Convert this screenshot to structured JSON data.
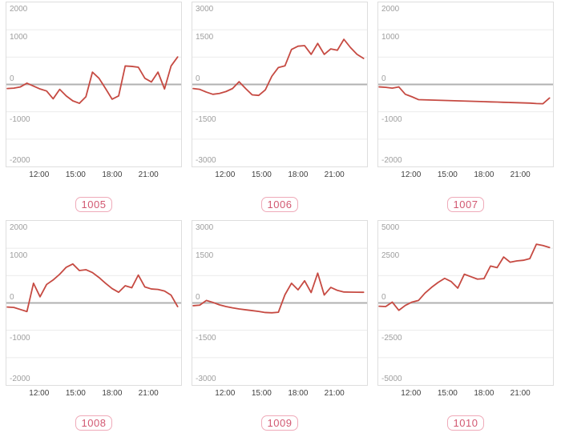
{
  "style": {
    "line_color": "#c64a42",
    "grid_color": "#ebebeb",
    "zero_line_color": "#b1b1b1",
    "plot_border_color": "#dedede",
    "y_label_color": "#9e9e9e",
    "x_label_color": "#3f3f3f",
    "badge_border_color": "#efaab9",
    "badge_text_color": "#d25871"
  },
  "chart_data": [
    {
      "type": "line",
      "title": "1005",
      "ylim": [
        -2000,
        2000
      ],
      "y_ticks": [
        "2000",
        "1000",
        "0",
        "-1000",
        "-2000"
      ],
      "x_labels": [
        "12:00",
        "15:00",
        "18:00",
        "21:00"
      ],
      "x_tick_pct": [
        19,
        39.7,
        60.4,
        81
      ],
      "x_start": "10:00",
      "x_end": "23:00",
      "x_interval_min": 30,
      "values": [
        -100,
        -90,
        -60,
        30,
        -40,
        -110,
        -160,
        -350,
        -120,
        -280,
        -400,
        -460,
        -300,
        300,
        150,
        -100,
        -360,
        -280,
        450,
        440,
        420,
        150,
        60,
        300,
        -110,
        450,
        670
      ],
      "grid": true,
      "legend": "none"
    },
    {
      "type": "line",
      "title": "1006",
      "ylim": [
        -3000,
        3000
      ],
      "y_ticks": [
        "3000",
        "1500",
        "0",
        "-1500",
        "-3000"
      ],
      "x_labels": [
        "12:00",
        "15:00",
        "18:00",
        "21:00"
      ],
      "x_tick_pct": [
        19,
        39.7,
        60.4,
        81
      ],
      "x_start": "10:00",
      "x_end": "23:00",
      "x_interval_min": 30,
      "values": [
        -150,
        -180,
        -280,
        -360,
        -330,
        -260,
        -150,
        100,
        -150,
        -380,
        -400,
        -200,
        300,
        620,
        680,
        1280,
        1400,
        1420,
        1100,
        1500,
        1100,
        1300,
        1250,
        1650,
        1350,
        1100,
        950
      ],
      "grid": true,
      "legend": "none"
    },
    {
      "type": "line",
      "title": "1007",
      "ylim": [
        -2000,
        2000
      ],
      "y_ticks": [
        "2000",
        "1000",
        "0",
        "-1000",
        "-2000"
      ],
      "x_labels": [
        "12:00",
        "15:00",
        "18:00",
        "21:00"
      ],
      "x_tick_pct": [
        19,
        39.7,
        60.4,
        81
      ],
      "x_start": "10:00",
      "x_end": "23:00",
      "x_interval_min": 30,
      "values": [
        -60,
        -70,
        -90,
        -60,
        -240,
        -300,
        -370,
        -375,
        -380,
        -385,
        -390,
        -395,
        -400,
        -405,
        -410,
        -415,
        -420,
        -425,
        -430,
        -435,
        -440,
        -445,
        -450,
        -455,
        -465,
        -470,
        -330
      ],
      "grid": true,
      "legend": "none"
    },
    {
      "type": "line",
      "title": "1008",
      "ylim": [
        -2000,
        2000
      ],
      "y_ticks": [
        "2000",
        "1000",
        "0",
        "-1000",
        "-2000"
      ],
      "x_labels": [
        "12:00",
        "15:00",
        "18:00",
        "21:00"
      ],
      "x_tick_pct": [
        19,
        39.7,
        60.4,
        81
      ],
      "x_start": "10:00",
      "x_end": "23:00",
      "x_interval_min": 30,
      "values": [
        -100,
        -110,
        -160,
        -210,
        480,
        150,
        450,
        560,
        700,
        870,
        950,
        790,
        810,
        740,
        620,
        480,
        350,
        260,
        420,
        370,
        680,
        390,
        340,
        330,
        290,
        190,
        -90
      ],
      "grid": true,
      "legend": "none"
    },
    {
      "type": "line",
      "title": "1009",
      "ylim": [
        -3000,
        3000
      ],
      "y_ticks": [
        "3000",
        "1500",
        "0",
        "-1500",
        "-3000"
      ],
      "x_labels": [
        "12:00",
        "15:00",
        "18:00",
        "21:00"
      ],
      "x_tick_pct": [
        19,
        39.7,
        60.4,
        81
      ],
      "x_start": "10:00",
      "x_end": "23:00",
      "x_interval_min": 30,
      "values": [
        -100,
        -80,
        90,
        20,
        -70,
        -130,
        -180,
        -220,
        -250,
        -280,
        -310,
        -350,
        -360,
        -340,
        300,
        720,
        480,
        810,
        380,
        1090,
        290,
        570,
        460,
        400,
        395,
        392,
        390
      ],
      "grid": true,
      "legend": "none"
    },
    {
      "type": "line",
      "title": "1010",
      "ylim": [
        -5000,
        5000
      ],
      "y_ticks": [
        "5000",
        "2500",
        "0",
        "-2500",
        "-5000"
      ],
      "x_labels": [
        "12:00",
        "15:00",
        "18:00",
        "21:00"
      ],
      "x_tick_pct": [
        19,
        39.7,
        60.4,
        81
      ],
      "x_start": "10:00",
      "x_end": "23:00",
      "x_interval_min": 30,
      "values": [
        -200,
        -220,
        50,
        -450,
        -150,
        50,
        150,
        600,
        950,
        1250,
        1500,
        1300,
        900,
        1750,
        1600,
        1450,
        1480,
        2250,
        2150,
        2800,
        2480,
        2560,
        2600,
        2700,
        3580,
        3500,
        3380
      ],
      "grid": true,
      "legend": "none"
    }
  ]
}
